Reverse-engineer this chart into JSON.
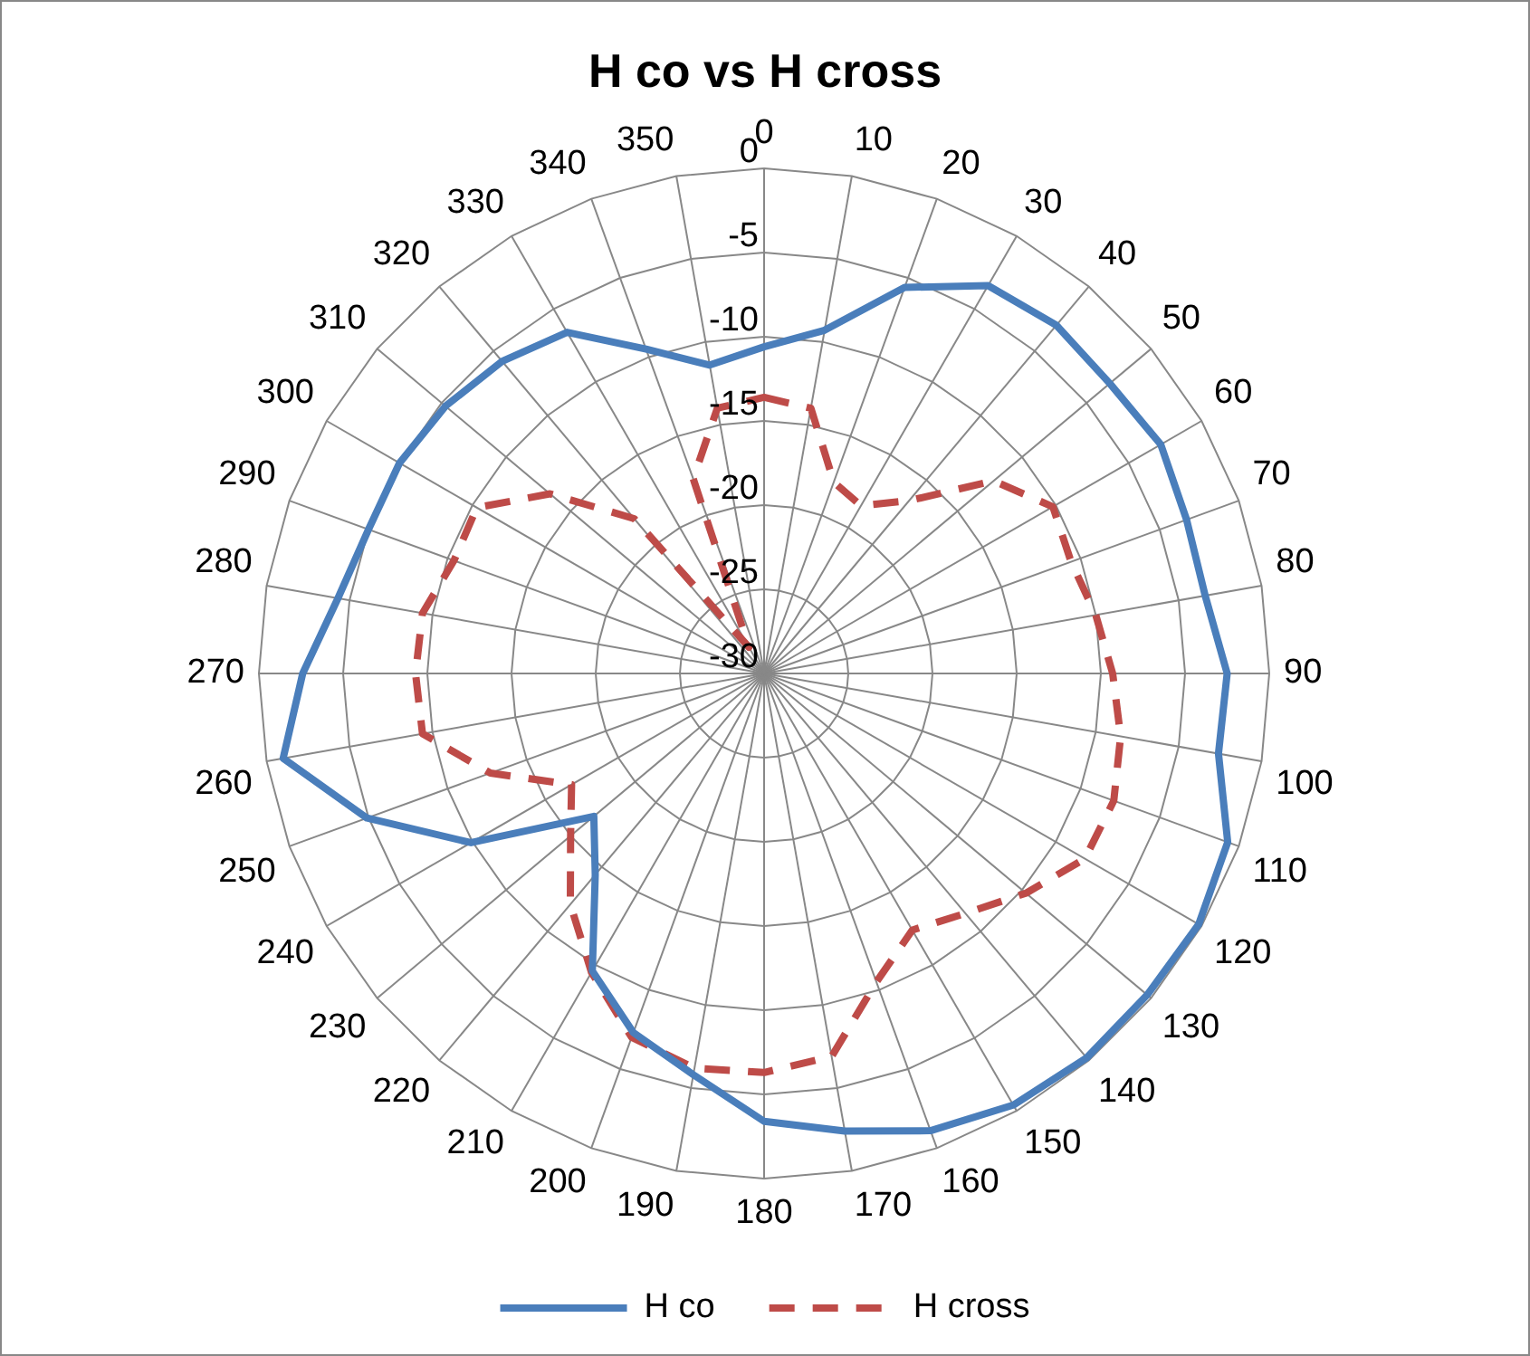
{
  "chart_data": {
    "type": "radar",
    "title": "H co vs H cross",
    "categories": [
      "0",
      "10",
      "20",
      "30",
      "40",
      "50",
      "60",
      "70",
      "80",
      "90",
      "100",
      "110",
      "120",
      "130",
      "140",
      "150",
      "160",
      "170",
      "180",
      "190",
      "200",
      "210",
      "220",
      "230",
      "240",
      "250",
      "260",
      "270",
      "280",
      "290",
      "300",
      "310",
      "320",
      "330",
      "340",
      "350"
    ],
    "series": [
      {
        "name": "H co",
        "color": "#4a7ebb",
        "line_style": "solid",
        "values": [
          -10.6,
          -9.3,
          -5.6,
          -3.4,
          -3.0,
          -3.2,
          -2.8,
          -3.3,
          -3.4,
          -2.5,
          -2.6,
          -0.7,
          -0.2,
          -0.3,
          -0.2,
          -0.4,
          -1.1,
          -2.4,
          -3.4,
          -5.8,
          -7.3,
          -9.6,
          -14.4,
          -16.8,
          -9.9,
          -4.9,
          -1.0,
          -2.6,
          -4.3,
          -5.0,
          -5.0,
          -5.3,
          -5.8,
          -6.6,
          -9.5,
          -11.4
        ]
      },
      {
        "name": "H cross",
        "color": "#be4b48",
        "line_style": "dashed",
        "values": [
          -13.6,
          -14.0,
          -17.9,
          -18.5,
          -16.6,
          -12.2,
          -10.2,
          -10.6,
          -10.0,
          -9.3,
          -8.5,
          -7.9,
          -8.0,
          -9.7,
          -11.4,
          -12.4,
          -10.5,
          -6.9,
          -6.3,
          -6.2,
          -7.0,
          -9.5,
          -12.1,
          -15.0,
          -16.8,
          -12.7,
          -9.4,
          -9.3,
          -9.4,
          -10.4,
          -10.3,
          -13.4,
          -18.0,
          -28.2,
          -17.7,
          -14.0
        ]
      }
    ],
    "ylim": [
      -30,
      0
    ],
    "yticks": [
      -30,
      -25,
      -20,
      -15,
      -10,
      -5,
      0
    ],
    "grid": true,
    "legend": "bottom",
    "marker": "none"
  }
}
